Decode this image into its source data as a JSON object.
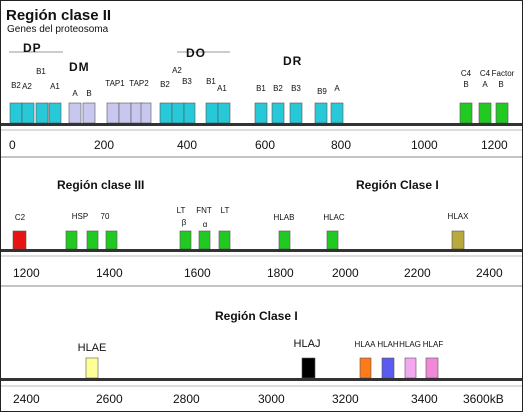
{
  "title": "Región clase II",
  "subtitle": "Genes del proteosoma",
  "colors": {
    "cyan": "#27c9d8",
    "lavender": "#c7c7ef",
    "green": "#22c922",
    "red": "#e81212",
    "olive": "#b8aa3c",
    "yellow": "#ffff99",
    "black": "#000000",
    "orange": "#ff7a1a",
    "blue": "#5b5bf0",
    "pink": "#f4a8f0",
    "pink2": "#f288d8"
  },
  "panel1": {
    "groups": [
      {
        "label": "DP"
      },
      {
        "label": "DM"
      },
      {
        "label": "DO"
      },
      {
        "label": "DR"
      }
    ],
    "genes": [
      {
        "label": "B2",
        "color": "cyan"
      },
      {
        "label": "A2",
        "color": "cyan"
      },
      {
        "label": "B1",
        "color": "cyan"
      },
      {
        "label": "A1",
        "color": "cyan"
      },
      {
        "label": "A",
        "color": "lavender"
      },
      {
        "label": "B",
        "color": "lavender"
      },
      {
        "label": "TAP1",
        "color": "lavender"
      },
      {
        "label": "TAP2",
        "color": "lavender"
      },
      {
        "label": "B2",
        "color": "cyan"
      },
      {
        "label": "A2",
        "color": "cyan"
      },
      {
        "label": "B3",
        "color": "cyan"
      },
      {
        "label": "B1",
        "color": "cyan"
      },
      {
        "label": "A1",
        "color": "cyan"
      },
      {
        "label": "B1",
        "color": "cyan"
      },
      {
        "label": "B2",
        "color": "cyan"
      },
      {
        "label": "B3",
        "color": "cyan"
      },
      {
        "label": "B9",
        "color": "cyan"
      },
      {
        "label": "A",
        "color": "cyan"
      },
      {
        "label": "C4",
        "sublabel": "B",
        "color": "green"
      },
      {
        "label": "C4",
        "sublabel": "A",
        "color": "green"
      },
      {
        "label": "Factor",
        "sublabel": "B",
        "color": "green"
      }
    ],
    "ticks": [
      "0",
      "200",
      "400",
      "600",
      "800",
      "1000",
      "1200"
    ]
  },
  "panel2": {
    "regions": [
      {
        "label": "Región clase III"
      },
      {
        "label": "Región Clase I"
      }
    ],
    "genes": [
      {
        "label": "C2",
        "color": "red"
      },
      {
        "label": "HSP",
        "color": "green"
      },
      {
        "label": "",
        "color": "green"
      },
      {
        "label": "70",
        "color": "green"
      },
      {
        "label": "LT",
        "sublabel": "β",
        "color": "green"
      },
      {
        "label": "FNT",
        "sublabel": "α",
        "color": "green"
      },
      {
        "label": "LT",
        "color": "green"
      },
      {
        "label": "HLAB",
        "color": "green"
      },
      {
        "label": "HLAC",
        "color": "green"
      },
      {
        "label": "HLAX",
        "color": "olive"
      }
    ],
    "ticks": [
      "1200",
      "1400",
      "1600",
      "1800",
      "2000",
      "2200",
      "2400"
    ]
  },
  "panel3": {
    "regions": [
      {
        "label": "Región Clase I"
      }
    ],
    "genes": [
      {
        "label": "HLAE",
        "color": "yellow"
      },
      {
        "label": "HLAJ",
        "color": "black"
      },
      {
        "label": "HLAA",
        "color": "orange"
      },
      {
        "label": "HLAH",
        "color": "blue"
      },
      {
        "label": "HLAG",
        "color": "pink"
      },
      {
        "label": "HLAF",
        "color": "pink2"
      }
    ],
    "ticks": [
      "2400",
      "2600",
      "2800",
      "3000",
      "3200",
      "3400",
      "3600kB"
    ]
  }
}
